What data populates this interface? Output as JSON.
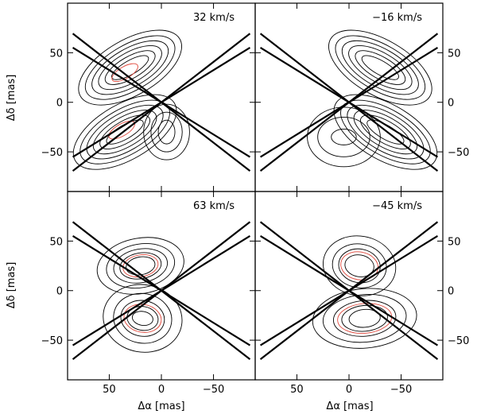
{
  "chart_data": {
    "type": "contour",
    "layout": "2x2 panels, shared axes",
    "xlabel": "Δα [mas]",
    "ylabel": "Δδ [mas]",
    "xlim": [
      90,
      -90
    ],
    "ylim": [
      -90,
      100
    ],
    "xticks": [
      50,
      0,
      -50
    ],
    "yticks": [
      50,
      0,
      -50
    ],
    "xtick_labels": [
      "50",
      "0",
      "−50"
    ],
    "ytick_labels": [
      "50",
      "0",
      "−50"
    ],
    "colors": {
      "contour": "#000000",
      "highlight_contour": "#e0463a",
      "cone": "#000000"
    },
    "panels": [
      {
        "label": "32 km/s",
        "cone_lines": [
          {
            "x": [
              85,
              -85
            ],
            "y": [
              69.3,
              -69.3
            ]
          },
          {
            "x": [
              85,
              -85
            ],
            "y": [
              55.2,
              -55.2
            ]
          },
          {
            "x": [
              85,
              -85
            ],
            "y": [
              -69.3,
              69.3
            ]
          },
          {
            "x": [
              85,
              -85
            ],
            "y": [
              -55.2,
              55.2
            ]
          }
        ],
        "contours": [
          {
            "center": [
              30,
              35
            ],
            "radii": [
              [
                55,
                28
              ],
              [
                48,
                23
              ],
              [
                41,
                19
              ],
              [
                34,
                15
              ],
              [
                27,
                11
              ],
              [
                20,
                7
              ]
            ],
            "angle": -30
          },
          {
            "center": [
              35,
              -30
            ],
            "radii": [
              [
                55,
                28
              ],
              [
                48,
                23
              ],
              [
                41,
                19
              ],
              [
                34,
                15
              ],
              [
                27,
                11
              ],
              [
                20,
                7
              ]
            ],
            "angle": -30
          },
          {
            "center": [
              -5,
              -30
            ],
            "radii": [
              [
                22,
                28
              ],
              [
                15,
                20
              ],
              [
                8,
                12
              ]
            ],
            "angle": 0
          }
        ],
        "red_contours": [
          {
            "center": [
              35,
              30
            ],
            "radii": [
              [
                14,
                6
              ]
            ],
            "angle": -30
          },
          {
            "center": [
              38,
              -28
            ],
            "radii": [
              [
                14,
                6
              ]
            ],
            "angle": -30
          }
        ]
      },
      {
        "label": "−16 km/s",
        "cone_lines": [
          {
            "x": [
              85,
              -85
            ],
            "y": [
              69.3,
              -69.3
            ]
          },
          {
            "x": [
              85,
              -85
            ],
            "y": [
              55.2,
              -55.2
            ]
          },
          {
            "x": [
              85,
              -85
            ],
            "y": [
              -69.3,
              69.3
            ]
          },
          {
            "x": [
              85,
              -85
            ],
            "y": [
              -55.2,
              55.2
            ]
          }
        ],
        "contours": [
          {
            "center": [
              -30,
              35
            ],
            "radii": [
              [
                55,
                28
              ],
              [
                48,
                23
              ],
              [
                41,
                19
              ],
              [
                34,
                15
              ],
              [
                27,
                11
              ],
              [
                20,
                7
              ]
            ],
            "angle": 30
          },
          {
            "center": [
              -35,
              -30
            ],
            "radii": [
              [
                55,
                28
              ],
              [
                48,
                23
              ],
              [
                41,
                19
              ],
              [
                34,
                15
              ],
              [
                27,
                11
              ],
              [
                20,
                7
              ]
            ],
            "angle": 30
          },
          {
            "center": [
              5,
              -35
            ],
            "radii": [
              [
                35,
                30
              ],
              [
                25,
                20
              ],
              [
                12,
                8
              ]
            ],
            "angle": 0
          }
        ],
        "red_contours": []
      },
      {
        "label": "63 km/s",
        "cone_lines": [
          {
            "x": [
              85,
              -85
            ],
            "y": [
              69.3,
              -69.3
            ]
          },
          {
            "x": [
              85,
              -85
            ],
            "y": [
              55.2,
              -55.2
            ]
          },
          {
            "x": [
              85,
              -85
            ],
            "y": [
              -69.3,
              69.3
            ]
          },
          {
            "x": [
              85,
              -85
            ],
            "y": [
              -55.2,
              55.2
            ]
          }
        ],
        "contours": [
          {
            "center": [
              20,
              25
            ],
            "radii": [
              [
                42,
                28
              ],
              [
                33,
                22
              ],
              [
                26,
                17
              ],
              [
                20,
                13
              ],
              [
                14,
                9
              ]
            ],
            "angle": -10
          },
          {
            "center": [
              18,
              -28
            ],
            "radii": [
              [
                38,
                34
              ],
              [
                28,
                25
              ],
              [
                21,
                18
              ],
              [
                15,
                12
              ],
              [
                10,
                7
              ]
            ],
            "angle": 10
          }
        ],
        "red_contours": [
          {
            "center": [
              20,
              25
            ],
            "radii": [
              [
                17,
                11
              ]
            ],
            "angle": -10
          },
          {
            "center": [
              18,
              -28
            ],
            "radii": [
              [
                18,
                14
              ]
            ],
            "angle": 10
          }
        ]
      },
      {
        "label": "−45 km/s",
        "cone_lines": [
          {
            "x": [
              85,
              -85
            ],
            "y": [
              69.3,
              -69.3
            ]
          },
          {
            "x": [
              85,
              -85
            ],
            "y": [
              55.2,
              -55.2
            ]
          },
          {
            "x": [
              85,
              -85
            ],
            "y": [
              -69.3,
              69.3
            ]
          },
          {
            "x": [
              85,
              -85
            ],
            "y": [
              -55.2,
              55.2
            ]
          }
        ],
        "contours": [
          {
            "center": [
              -10,
              25
            ],
            "radii": [
              [
                35,
                30
              ],
              [
                26,
                22
              ],
              [
                20,
                17
              ],
              [
                14,
                11
              ]
            ],
            "angle": 10
          },
          {
            "center": [
              -15,
              -28
            ],
            "radii": [
              [
                50,
                30
              ],
              [
                40,
                24
              ],
              [
                30,
                18
              ],
              [
                22,
                13
              ],
              [
                15,
                9
              ]
            ],
            "angle": -5
          }
        ],
        "red_contours": [
          {
            "center": [
              -10,
              25
            ],
            "radii": [
              [
                18,
                14
              ]
            ],
            "angle": 10
          },
          {
            "center": [
              -15,
              -28
            ],
            "radii": [
              [
                26,
                15
              ]
            ],
            "angle": -5
          }
        ]
      }
    ]
  }
}
